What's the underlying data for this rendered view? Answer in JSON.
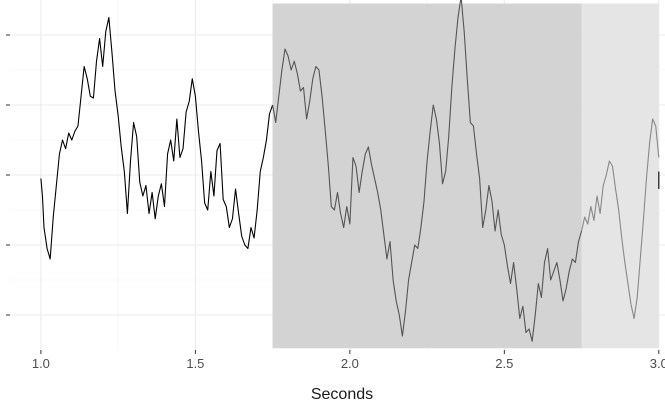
{
  "chart_data": {
    "type": "line",
    "title": "",
    "xlabel": "Seconds",
    "ylabel": "",
    "xlim": [
      0.9,
      3.02
    ],
    "ylim": [
      -1.0,
      1.0
    ],
    "x_ticks": [
      1.0,
      1.5,
      2.0,
      2.5,
      3.0
    ],
    "x_tick_labels": [
      "1.0",
      "1.5",
      "2.0",
      "2.5",
      "3.0"
    ],
    "y_ticks": [
      -0.8,
      -0.4,
      0.0,
      0.4,
      0.8
    ],
    "y_tick_labels_visible": false,
    "grid": true,
    "shaded_regions": [
      {
        "x_start": 1.75,
        "x_end": 2.75,
        "y_start": -0.99,
        "y_end": 0.98,
        "color": "#d3d3d3"
      },
      {
        "x_start": 2.75,
        "x_end": 3.0,
        "y_start": -0.99,
        "y_end": 0.98,
        "color": "#e5e5e5"
      }
    ],
    "series": [
      {
        "color": "#000000",
        "x": [
          1.0,
          1.005,
          1.01,
          1.02,
          1.03,
          1.04,
          1.05,
          1.06,
          1.07,
          1.08,
          1.09,
          1.1,
          1.11,
          1.12,
          1.13,
          1.14,
          1.15,
          1.16,
          1.17,
          1.18,
          1.19,
          1.2,
          1.21,
          1.22,
          1.23,
          1.24,
          1.25,
          1.26,
          1.27,
          1.28,
          1.29,
          1.3,
          1.31,
          1.32,
          1.33,
          1.34,
          1.35,
          1.36,
          1.37,
          1.38,
          1.39,
          1.4,
          1.41,
          1.42,
          1.43,
          1.44,
          1.45,
          1.46,
          1.47,
          1.48,
          1.49,
          1.5,
          1.51,
          1.52,
          1.53,
          1.54,
          1.55,
          1.56,
          1.57,
          1.58,
          1.59,
          1.6,
          1.61,
          1.62,
          1.63,
          1.64,
          1.65,
          1.66,
          1.67,
          1.68,
          1.69,
          1.7,
          1.71,
          1.72,
          1.73,
          1.74,
          1.75
        ],
        "y": [
          -0.02,
          -0.12,
          -0.3,
          -0.42,
          -0.48,
          -0.24,
          -0.06,
          0.12,
          0.2,
          0.15,
          0.24,
          0.2,
          0.25,
          0.28,
          0.45,
          0.62,
          0.55,
          0.45,
          0.44,
          0.65,
          0.78,
          0.62,
          0.82,
          0.9,
          0.7,
          0.48,
          0.34,
          0.16,
          0.02,
          -0.22,
          0.08,
          0.3,
          0.22,
          -0.04,
          -0.12,
          -0.06,
          -0.22,
          -0.1,
          -0.25,
          -0.12,
          -0.05,
          -0.18,
          0.12,
          0.2,
          0.08,
          0.32,
          0.1,
          0.15,
          0.36,
          0.42,
          0.55,
          0.45,
          0.25,
          0.08,
          -0.16,
          -0.2,
          0.02,
          -0.12,
          0.14,
          0.18,
          -0.14,
          -0.18,
          -0.3,
          -0.25,
          -0.08,
          -0.22,
          -0.35,
          -0.4,
          -0.42,
          -0.3,
          -0.36,
          -0.2,
          0.02,
          0.1,
          0.2,
          0.35,
          0.4
        ]
      },
      {
        "color": "#555555",
        "x": [
          1.75,
          1.76,
          1.77,
          1.78,
          1.79,
          1.8,
          1.81,
          1.82,
          1.83,
          1.84,
          1.85,
          1.86,
          1.87,
          1.88,
          1.89,
          1.9,
          1.91,
          1.92,
          1.93,
          1.94,
          1.95,
          1.96,
          1.97,
          1.98,
          1.99,
          2.0,
          2.01,
          2.02,
          2.03,
          2.04,
          2.05,
          2.06,
          2.07,
          2.08,
          2.09,
          2.1,
          2.11,
          2.12,
          2.13,
          2.14,
          2.15,
          2.16,
          2.17,
          2.18,
          2.19,
          2.2,
          2.21,
          2.22,
          2.23,
          2.24,
          2.25,
          2.26,
          2.27,
          2.28,
          2.29,
          2.3,
          2.31,
          2.32,
          2.33,
          2.34,
          2.35,
          2.36,
          2.37,
          2.38,
          2.39,
          2.4,
          2.41,
          2.42,
          2.43,
          2.44,
          2.45,
          2.46,
          2.47,
          2.48,
          2.49,
          2.5,
          2.51,
          2.52,
          2.53,
          2.54,
          2.55,
          2.56,
          2.57,
          2.58,
          2.59,
          2.6,
          2.61,
          2.62,
          2.63,
          2.64,
          2.65,
          2.66,
          2.67,
          2.68,
          2.69,
          2.7,
          2.71,
          2.72,
          2.73,
          2.74,
          2.75
        ],
        "y": [
          0.4,
          0.3,
          0.45,
          0.6,
          0.72,
          0.68,
          0.6,
          0.65,
          0.58,
          0.48,
          0.5,
          0.32,
          0.42,
          0.55,
          0.62,
          0.6,
          0.45,
          0.26,
          0.06,
          -0.18,
          -0.2,
          -0.1,
          -0.22,
          -0.3,
          -0.18,
          -0.28,
          0.1,
          0.05,
          -0.1,
          0.02,
          0.12,
          0.16,
          0.06,
          -0.02,
          -0.1,
          -0.2,
          -0.34,
          -0.48,
          -0.38,
          -0.6,
          -0.72,
          -0.8,
          -0.92,
          -0.78,
          -0.6,
          -0.5,
          -0.4,
          -0.42,
          -0.3,
          -0.15,
          0.08,
          0.25,
          0.4,
          0.32,
          0.18,
          -0.05,
          0.02,
          0.22,
          0.5,
          0.72,
          0.9,
          1.02,
          0.82,
          0.55,
          0.3,
          0.28,
          0.12,
          -0.02,
          -0.3,
          -0.2,
          -0.06,
          -0.15,
          -0.32,
          -0.2,
          -0.34,
          -0.4,
          -0.52,
          -0.62,
          -0.5,
          -0.65,
          -0.82,
          -0.75,
          -0.9,
          -0.88,
          -0.95,
          -0.8,
          -0.62,
          -0.7,
          -0.5,
          -0.42,
          -0.6,
          -0.55,
          -0.5,
          -0.6,
          -0.72,
          -0.65,
          -0.55,
          -0.48,
          -0.5,
          -0.38,
          -0.32
        ]
      },
      {
        "color": "#888888",
        "x": [
          2.75,
          2.76,
          2.77,
          2.78,
          2.79,
          2.8,
          2.81,
          2.82,
          2.83,
          2.84,
          2.85,
          2.86,
          2.87,
          2.88,
          2.89,
          2.9,
          2.91,
          2.92,
          2.93,
          2.94,
          2.95,
          2.96,
          2.97,
          2.98,
          2.99,
          3.0
        ],
        "y": [
          -0.32,
          -0.24,
          -0.28,
          -0.18,
          -0.26,
          -0.12,
          -0.22,
          -0.06,
          0.0,
          0.08,
          0.05,
          -0.08,
          -0.2,
          -0.36,
          -0.5,
          -0.62,
          -0.74,
          -0.82,
          -0.7,
          -0.48,
          -0.26,
          -0.02,
          0.18,
          0.32,
          0.28,
          0.1
        ]
      },
      {
        "color": "#000000",
        "x": [
          3.0,
          3.0
        ],
        "y": [
          0.02,
          -0.08
        ]
      }
    ]
  }
}
